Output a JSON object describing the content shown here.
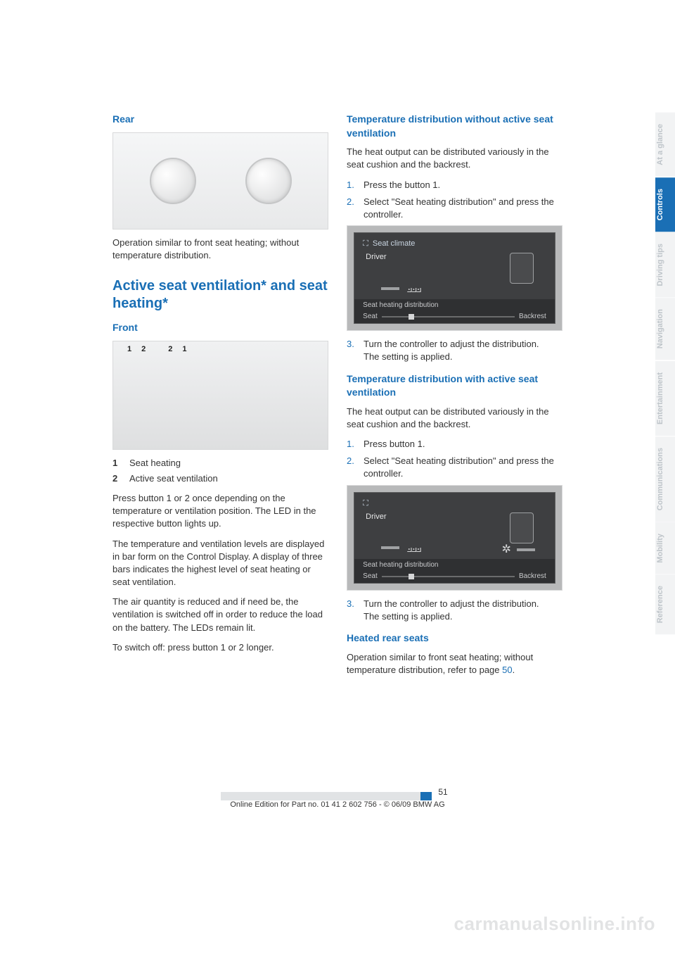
{
  "colors": {
    "heading": "#1a6fb5",
    "body": "#333333",
    "tab_inactive_bg": "#f2f3f4",
    "tab_inactive_text": "#bfc5ca",
    "tab_active_bg": "#1a6fb5",
    "tab_active_text": "#ffffff",
    "watermark": "#e2e3e4"
  },
  "left": {
    "rear": {
      "heading": "Rear",
      "caption": "Operation similar to front seat heating; without temperature distribution."
    },
    "active": {
      "heading": "Active seat ventilation* and seat heating*",
      "front_heading": "Front",
      "callouts": [
        "1",
        "2",
        "2",
        "1"
      ],
      "defs": [
        {
          "num": "1",
          "label": "Seat heating"
        },
        {
          "num": "2",
          "label": "Active seat ventilation"
        }
      ],
      "p1": "Press button 1 or 2 once depending on the temperature or ventilation position. The LED in the respective button lights up.",
      "p2": "The temperature and ventilation levels are displayed in bar form on the Control Display. A display of three bars indicates the highest level of seat heating or seat ventilation.",
      "p3": "The air quantity is reduced and if need be, the ventilation is switched off in order to reduce the load on the battery. The LEDs remain lit.",
      "p4": "To switch off: press button 1 or 2 longer."
    }
  },
  "right": {
    "tdwo": {
      "heading": "Temperature distribution without active seat ventilation",
      "p1": "The heat output can be distributed variously in the seat cushion and the backrest.",
      "steps": [
        "Press the button 1.",
        "Select \"Seat heating distribution\" and press the controller."
      ],
      "screen": {
        "title": "Seat climate",
        "driver": "Driver",
        "menu": "Seat heating distribution",
        "left_label": "Seat",
        "right_label": "Backrest",
        "show_fan": false
      },
      "steps_after": [
        "Turn the controller to adjust the distribution.\nThe setting is applied."
      ]
    },
    "tdw": {
      "heading": "Temperature distribution with active seat ventilation",
      "p1": "The heat output can be distributed variously in the seat cushion and the backrest.",
      "steps": [
        "Press button 1.",
        "Select \"Seat heating distribution\" and press the controller."
      ],
      "screen": {
        "title": "",
        "driver": "Driver",
        "menu": "Seat heating distribution",
        "left_label": "Seat",
        "right_label": "Backrest",
        "show_fan": true
      },
      "steps_after": [
        "Turn the controller to adjust the distribution.\nThe setting is applied."
      ]
    },
    "heated": {
      "heading": "Heated rear seats",
      "body_pre": "Operation similar to front seat heating; without temperature distribution, refer to page ",
      "link": "50",
      "body_post": "."
    }
  },
  "tabs": [
    {
      "label": "At a glance",
      "active": false
    },
    {
      "label": "Controls",
      "active": true
    },
    {
      "label": "Driving tips",
      "active": false
    },
    {
      "label": "Navigation",
      "active": false
    },
    {
      "label": "Entertainment",
      "active": false
    },
    {
      "label": "Communications",
      "active": false
    },
    {
      "label": "Mobility",
      "active": false
    },
    {
      "label": "Reference",
      "active": false
    }
  ],
  "footer": {
    "page_number": "51",
    "line": "Online Edition for Part no. 01 41 2 602 756 - © 06/09 BMW AG"
  },
  "watermark": "carmanualsonline.info"
}
